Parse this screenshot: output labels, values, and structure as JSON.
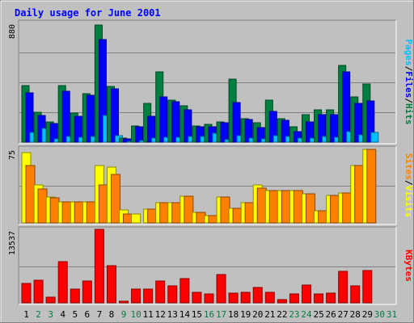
{
  "chart_data": {
    "type": "bar",
    "title": "Daily usage for June 2001",
    "categories": [
      "1",
      "2",
      "3",
      "4",
      "5",
      "6",
      "7",
      "8",
      "9",
      "10",
      "11",
      "12",
      "13",
      "14",
      "15",
      "16",
      "17",
      "18",
      "19",
      "20",
      "21",
      "22",
      "23",
      "24",
      "25",
      "26",
      "27",
      "28",
      "29",
      "30",
      "31"
    ],
    "weekend_days": [
      "2",
      "3",
      "9",
      "10",
      "16",
      "17",
      "23",
      "24",
      "30",
      "31"
    ],
    "panels": [
      {
        "id": "hits",
        "ymax": 880,
        "ytick_label": "880",
        "series": [
          {
            "name": "Hits",
            "color": "#008040",
            "values": [
              415,
              220,
              150,
              415,
              215,
              355,
              865,
              410,
              30,
              120,
              285,
              515,
              310,
              265,
              120,
              130,
              150,
              465,
              170,
              145,
              310,
              170,
              110,
              200,
              235,
              235,
              565,
              335,
              430,
              0,
              0
            ]
          },
          {
            "name": "Files",
            "color": "#0000ff",
            "values": [
              360,
              195,
              135,
              375,
              190,
              345,
              755,
              390,
              25,
              110,
              190,
              330,
              300,
              235,
              110,
              115,
              140,
              290,
              165,
              105,
              225,
              160,
              75,
              150,
              205,
              200,
              515,
              285,
              305,
              0,
              0
            ]
          },
          {
            "name": "Pages",
            "color": "#00c0ff",
            "values": [
              70,
              100,
              25,
              40,
              35,
              40,
              195,
              50,
              5,
              10,
              30,
              35,
              35,
              40,
              40,
              65,
              20,
              45,
              30,
              25,
              45,
              40,
              30,
              30,
              40,
              35,
              75,
              55,
              70,
              0,
              0
            ]
          }
        ],
        "right_labels": [
          {
            "text": "Hits",
            "color": "#008040"
          },
          {
            "text": "Files",
            "color": "#0000ff"
          },
          {
            "text": "Pages",
            "color": "#00c0ff"
          }
        ],
        "separator": "/"
      },
      {
        "id": "visits",
        "ymax": 75,
        "ytick_label": "75",
        "series": [
          {
            "name": "Visits",
            "color": "#ffff00",
            "values": [
              71,
              38,
              26,
              21,
              21,
              21,
              58,
              56,
              13,
              9,
              14,
              20,
              20,
              27,
              11,
              7,
              26,
              15,
              20,
              38,
              33,
              33,
              33,
              29,
              12,
              28,
              30,
              58,
              74,
              0,
              0
            ]
          },
          {
            "name": "Sites",
            "color": "#ff8000",
            "values": [
              58,
              34,
              25,
              21,
              21,
              21,
              38,
              49,
              9,
              0,
              14,
              20,
              20,
              27,
              11,
              7,
              26,
              15,
              20,
              35,
              33,
              33,
              33,
              29,
              12,
              28,
              30,
              58,
              74,
              0,
              0
            ]
          }
        ],
        "right_labels": [
          {
            "text": "Visits",
            "color": "#ffff00"
          },
          {
            "text": "Sites",
            "color": "#ff8000"
          }
        ],
        "separator": "/"
      },
      {
        "id": "kbytes",
        "ymax": 13537,
        "ytick_label": "13537",
        "series": [
          {
            "name": "KBytes",
            "color": "#ff0000",
            "values": [
              3500,
              4200,
              1100,
              7600,
              2600,
              4000,
              13537,
              6800,
              300,
              2600,
              2600,
              4000,
              3100,
              4500,
              1900,
              1600,
              5200,
              1800,
              1900,
              2800,
              1900,
              600,
              1600,
              3200,
              1600,
              1800,
              5800,
              3100,
              6000,
              0,
              0
            ]
          }
        ],
        "right_labels": [
          {
            "text": "KBytes",
            "color": "#ff0000"
          }
        ],
        "separator": ""
      }
    ]
  }
}
